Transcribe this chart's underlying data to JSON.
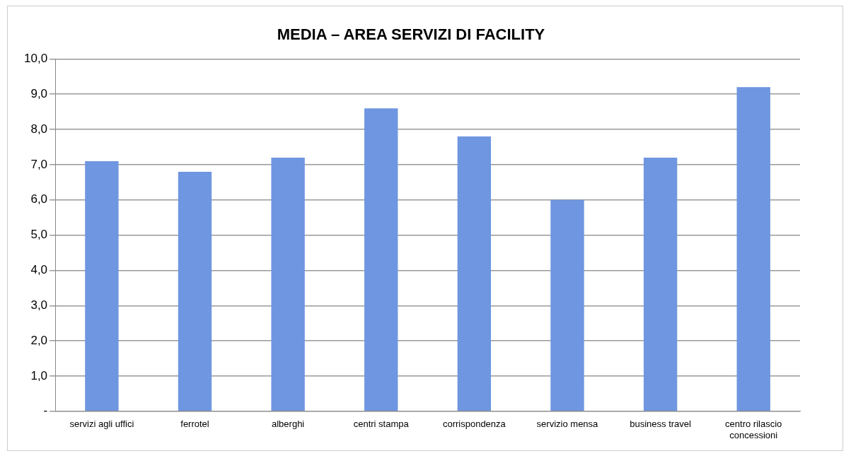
{
  "chart_data": {
    "type": "bar",
    "title": "MEDIA – AREA SERVIZI DI FACILITY",
    "categories": [
      "servizi agli uffici",
      "ferrotel",
      "alberghi",
      "centri stampa",
      "corrispondenza",
      "servizio mensa",
      "business travel",
      "centro rilascio concessioni"
    ],
    "values": [
      7.1,
      6.8,
      7.2,
      8.6,
      7.8,
      6.0,
      7.2,
      9.2
    ],
    "color": "#6f96e0",
    "ylim": [
      0,
      10
    ],
    "yticks": [
      {
        "value": 0,
        "label": "-"
      },
      {
        "value": 1,
        "label": "1,0"
      },
      {
        "value": 2,
        "label": "2,0"
      },
      {
        "value": 3,
        "label": "3,0"
      },
      {
        "value": 4,
        "label": "4,0"
      },
      {
        "value": 5,
        "label": "5,0"
      },
      {
        "value": 6,
        "label": "6,0"
      },
      {
        "value": 7,
        "label": "7,0"
      },
      {
        "value": 8,
        "label": "8,0"
      },
      {
        "value": 9,
        "label": "9,0"
      },
      {
        "value": 10,
        "label": "10,0"
      }
    ],
    "grid": "y",
    "legend": false
  }
}
